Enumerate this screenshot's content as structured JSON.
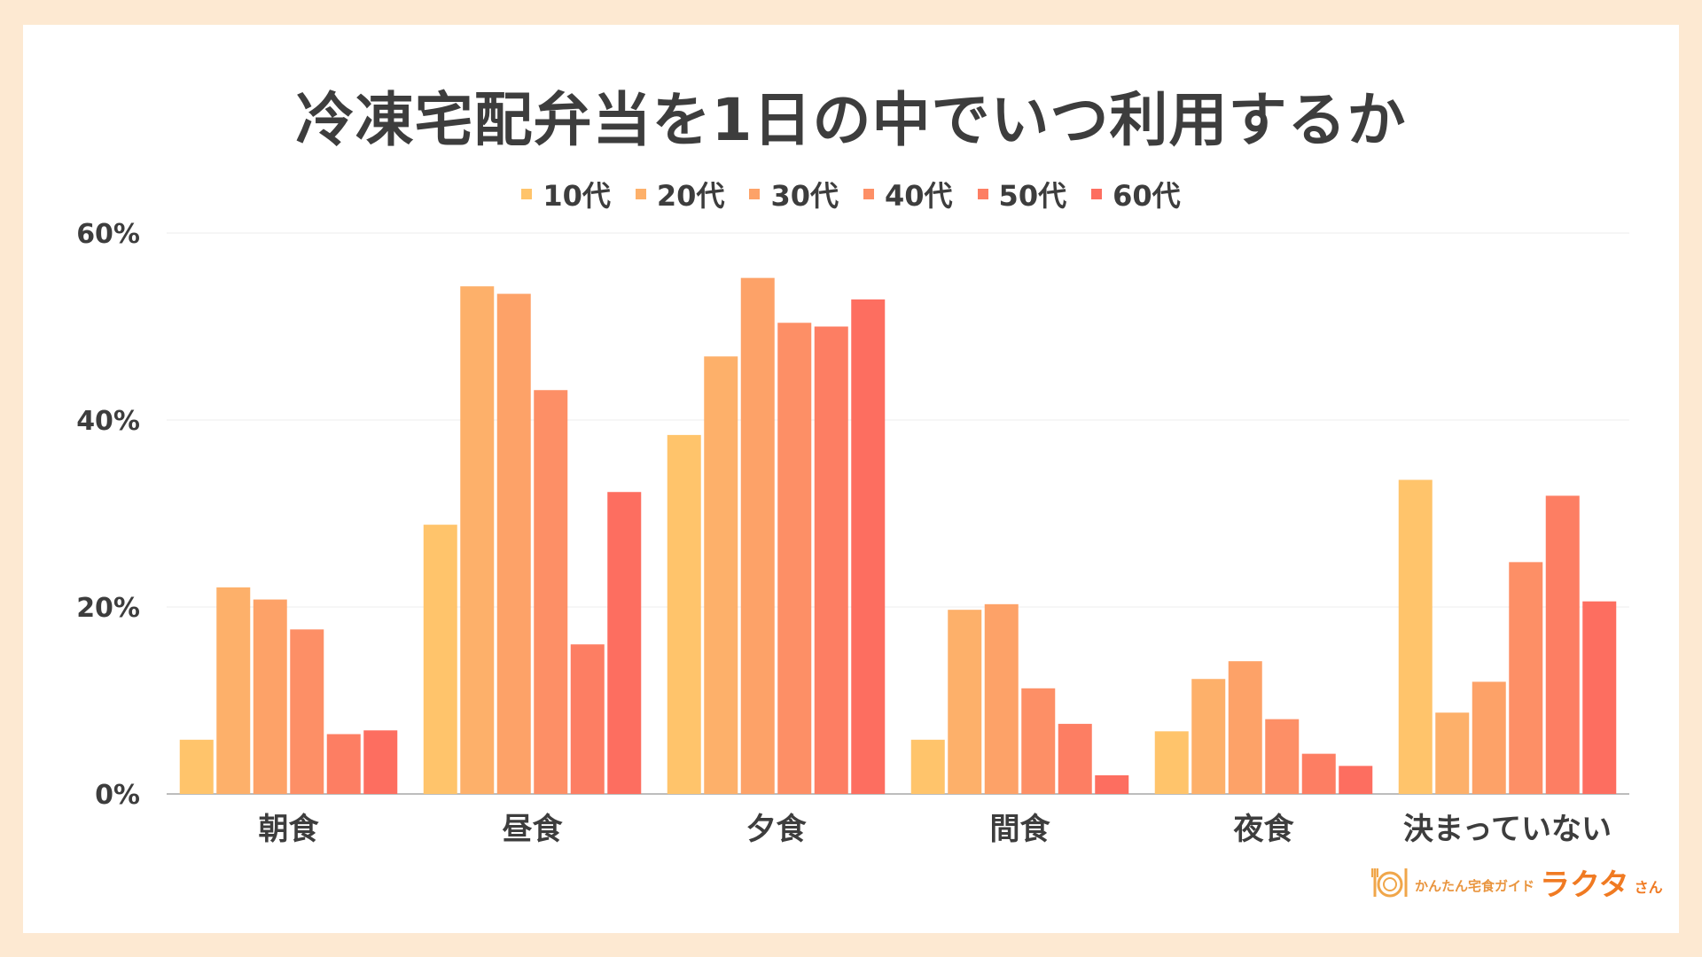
{
  "chart_data": {
    "type": "bar",
    "title": "冷凍宅配弁当を1日の中でいつ利用するか",
    "categories": [
      "朝食",
      "昼食",
      "夕食",
      "間食",
      "夜食",
      "決まっていない"
    ],
    "series": [
      {
        "name": "10代",
        "color": "#ffc46b",
        "values": [
          5.8,
          28.8,
          38.4,
          5.8,
          6.7,
          33.6
        ]
      },
      {
        "name": "20代",
        "color": "#fdb06a",
        "values": [
          22.1,
          54.3,
          46.8,
          19.7,
          12.3,
          8.7
        ]
      },
      {
        "name": "30代",
        "color": "#fda268",
        "values": [
          20.8,
          53.5,
          55.2,
          20.3,
          14.2,
          12.0
        ]
      },
      {
        "name": "40代",
        "color": "#fd8f66",
        "values": [
          17.6,
          43.2,
          50.4,
          11.3,
          8.0,
          24.8
        ]
      },
      {
        "name": "50代",
        "color": "#fd7e63",
        "values": [
          6.4,
          16.0,
          50.0,
          7.5,
          4.3,
          31.9
        ]
      },
      {
        "name": "60代",
        "color": "#fd6e60",
        "values": [
          6.8,
          32.3,
          52.9,
          2.0,
          3.0,
          20.6
        ]
      }
    ],
    "ylim": [
      0,
      60
    ],
    "yticks": [
      0,
      20,
      40,
      60
    ],
    "ytick_labels": [
      "0%",
      "20%",
      "40%",
      "60%"
    ],
    "grid": true,
    "legend_position": "top-center"
  },
  "logo": {
    "icon": "plate-fork-knife-icon",
    "tagline": "かんたん宅食ガイド",
    "name": "ラクタ",
    "suffix": "さん"
  }
}
